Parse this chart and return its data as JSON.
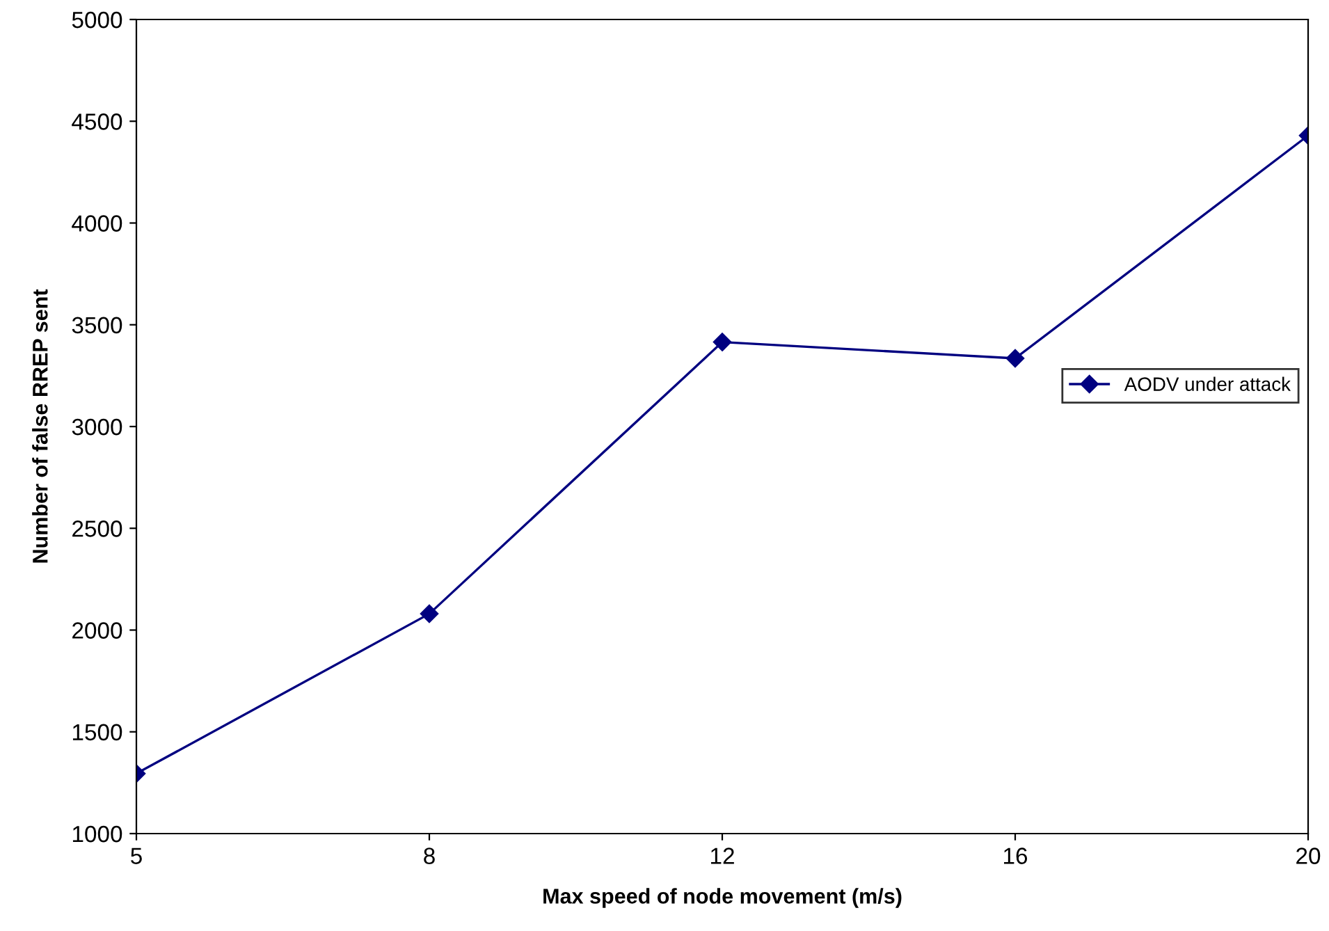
{
  "chart_data": {
    "type": "line",
    "xlabel": "Max speed of node movement (m/s)",
    "ylabel": "Number of false RREP sent",
    "categories": [
      "5",
      "8",
      "12",
      "16",
      "20"
    ],
    "series": [
      {
        "name": "AODV under attack",
        "color": "#000080",
        "values": [
          1295,
          2080,
          3415,
          3335,
          4430
        ]
      }
    ],
    "ylim": [
      1000,
      5000
    ],
    "yticks": [
      1000,
      1500,
      2000,
      2500,
      3000,
      3500,
      4000,
      4500,
      5000
    ],
    "grid": false,
    "legend": "right",
    "marker": "diamond",
    "line_style": "solid"
  }
}
